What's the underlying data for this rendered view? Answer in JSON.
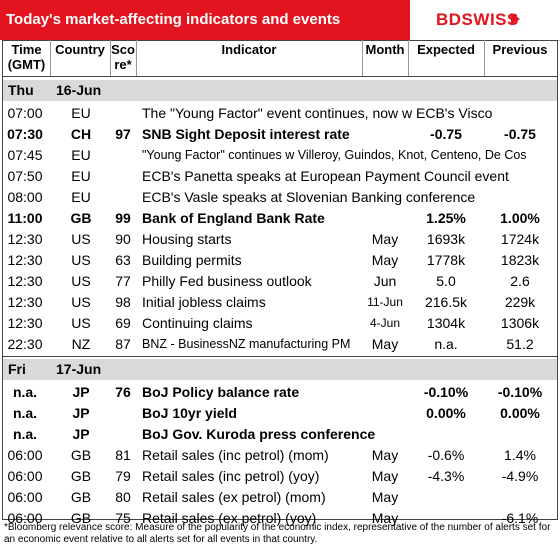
{
  "header": {
    "title": "Today's market-affecting indicators and events",
    "brand": "BDSWISS"
  },
  "columns": [
    "Time (GMT)",
    "Country",
    "Score*",
    "Indicator",
    "Month",
    "Expected",
    "Previous"
  ],
  "days": [
    {
      "day": "Thu",
      "date": "16-Jun",
      "rows": [
        {
          "cells": [
            "07:00",
            "EU",
            null,
            "The \"Young Factor\" event continues, now w ECB's Visco",
            null,
            null,
            null
          ]
        },
        {
          "cells": [
            "07:30",
            "CH",
            "97",
            "SNB Sight Deposit interest rate",
            null,
            "-0.75",
            "-0.75"
          ],
          "bold": true
        },
        {
          "cells": [
            "07:45",
            "EU",
            null,
            "\"Young Factor\" continues w Villeroy, Guindos, Knot, Centeno, De Cos",
            null,
            null,
            null
          ],
          "small": true
        },
        {
          "cells": [
            "07:50",
            "EU",
            null,
            "ECB's Panetta speaks at European Payment Council event",
            null,
            null,
            null
          ]
        },
        {
          "cells": [
            "08:00",
            "EU",
            null,
            "ECB's Vasle speaks at Slovenian Banking conference",
            null,
            null,
            null
          ]
        },
        {
          "cells": [
            "11:00",
            "GB",
            "99",
            "Bank of England Bank Rate",
            null,
            "1.25%",
            "1.00%"
          ],
          "bold": true
        },
        {
          "cells": [
            "12:30",
            "US",
            "90",
            "Housing starts",
            "May",
            "1693k",
            "1724k"
          ]
        },
        {
          "cells": [
            "12:30",
            "US",
            "63",
            "Building permits",
            "May",
            "1778k",
            "1823k"
          ]
        },
        {
          "cells": [
            "12:30",
            "US",
            "77",
            "Philly Fed business outlook",
            "Jun",
            "5.0",
            "2.6"
          ]
        },
        {
          "cells": [
            "12:30",
            "US",
            "98",
            "Initial jobless claims",
            "11-Jun",
            "216.5k",
            "229k"
          ]
        },
        {
          "cells": [
            "12:30",
            "US",
            "69",
            "Continuing claims",
            "4-Jun",
            "1304k",
            "1306k"
          ]
        },
        {
          "cells": [
            "22:30",
            "NZ",
            "87",
            "BNZ - BusinessNZ manufacturing PM",
            "May",
            "n.a.",
            "51.2"
          ],
          "small": true
        }
      ]
    },
    {
      "day": "Fri",
      "date": "17-Jun",
      "rows": [
        {
          "cells": [
            "n.a.",
            "JP",
            "76",
            "BoJ  Policy balance rate",
            null,
            "-0.10%",
            "-0.10%"
          ],
          "bold": true
        },
        {
          "cells": [
            "n.a.",
            "JP",
            null,
            "BoJ 10yr yield",
            null,
            "0.00%",
            "0.00%"
          ],
          "bold": true
        },
        {
          "cells": [
            "n.a.",
            "JP",
            null,
            "BoJ Gov. Kuroda press conference",
            null,
            null,
            null
          ],
          "bold": true
        },
        {
          "cells": [
            "06:00",
            "GB",
            "81",
            "Retail sales (inc petrol) (mom)",
            "May",
            "-0.6%",
            "1.4%"
          ]
        },
        {
          "cells": [
            "06:00",
            "GB",
            "79",
            "Retail sales (inc petrol) (yoy)",
            "May",
            "-4.3%",
            "-4.9%"
          ]
        },
        {
          "cells": [
            "06:00",
            "GB",
            "80",
            "Retail sales (ex petrol) (mom)",
            "May",
            null,
            null
          ]
        },
        {
          "cells": [
            "06:00",
            "GB",
            "75",
            "Retail sales (ex petrol) (yoy)",
            "May",
            null,
            "-6.1%"
          ]
        }
      ]
    }
  ],
  "footnote": "*Bloomberg relevance score:  Measure of the popularity of the economic index, representative of the number of alerts set for an economic event relative to all alerts set for all events in that country."
}
